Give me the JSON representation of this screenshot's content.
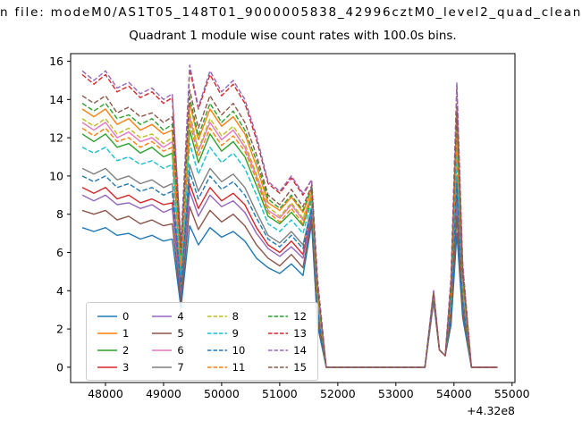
{
  "chart_data": {
    "type": "line",
    "suptitle": "n file: modeM0/AS1T05_148T01_9000005838_42996cztM0_level2_quad_clean",
    "title": "Quadrant 1 module wise count rates with 100.0s bins.",
    "xlabel": "",
    "ylabel": "",
    "x_offset_label": "+4.32e8",
    "xlim": [
      47400,
      55050
    ],
    "ylim": [
      -0.8,
      16.4
    ],
    "xticks": [
      48000,
      49000,
      50000,
      51000,
      52000,
      53000,
      54000,
      55000
    ],
    "yticks": [
      0,
      2,
      4,
      6,
      8,
      10,
      12,
      14,
      16
    ],
    "grid": false,
    "legend_position": "lower left",
    "legend_columns": 4,
    "x": [
      47600,
      47800,
      48000,
      48200,
      48400,
      48600,
      48800,
      49000,
      49150,
      49300,
      49450,
      49600,
      49800,
      50000,
      50200,
      50400,
      50600,
      50800,
      51000,
      51200,
      51400,
      51550,
      51650,
      51800,
      52000,
      52500,
      53000,
      53500,
      53650,
      53750,
      53850,
      53950,
      54050,
      54150,
      54300,
      54500,
      54750
    ],
    "series": [
      {
        "name": "0",
        "color": "#1f77b4",
        "dash": false,
        "values": [
          7.3,
          7.1,
          7.3,
          6.9,
          7.0,
          6.7,
          6.9,
          6.6,
          6.7,
          3.1,
          7.4,
          6.4,
          7.3,
          6.8,
          7.1,
          6.6,
          5.7,
          5.2,
          4.9,
          5.4,
          4.8,
          7.5,
          2.2,
          0,
          0,
          0,
          0,
          0,
          3.4,
          0.9,
          0.6,
          2.2,
          7.0,
          2.6,
          0,
          0,
          0
        ]
      },
      {
        "name": "1",
        "color": "#ff7f0e",
        "dash": false,
        "values": [
          13.5,
          13.1,
          13.5,
          12.7,
          13.0,
          12.4,
          12.7,
          12.2,
          12.4,
          5.7,
          13.8,
          11.9,
          13.5,
          12.6,
          13.1,
          12.2,
          10.5,
          8.6,
          8.2,
          8.9,
          8.1,
          9.3,
          4.1,
          0,
          0,
          0,
          0,
          0,
          3.9,
          0.9,
          0.6,
          4.1,
          13.0,
          4.7,
          0,
          0,
          0
        ]
      },
      {
        "name": "2",
        "color": "#2ca02c",
        "dash": false,
        "values": [
          12.2,
          11.8,
          12.2,
          11.5,
          11.7,
          11.2,
          11.5,
          11.0,
          11.2,
          5.1,
          12.4,
          10.7,
          12.2,
          11.3,
          11.8,
          11.0,
          9.5,
          7.9,
          7.5,
          8.1,
          7.4,
          8.9,
          3.7,
          0,
          0,
          0,
          0,
          0,
          3.8,
          0.9,
          0.6,
          3.7,
          11.7,
          4.3,
          0,
          0,
          0
        ]
      },
      {
        "name": "3",
        "color": "#d62728",
        "dash": false,
        "values": [
          9.4,
          9.1,
          9.4,
          8.8,
          9.0,
          8.6,
          8.8,
          8.5,
          8.6,
          3.9,
          9.6,
          8.3,
          9.4,
          8.7,
          9.1,
          8.5,
          7.3,
          6.4,
          6.0,
          6.6,
          5.9,
          8.1,
          2.8,
          0,
          0,
          0,
          0,
          0,
          3.6,
          0.9,
          0.6,
          2.8,
          9.0,
          3.3,
          0,
          0,
          0
        ]
      },
      {
        "name": "4",
        "color": "#9467bd",
        "dash": false,
        "values": [
          9.0,
          8.7,
          9.0,
          8.5,
          8.6,
          8.3,
          8.5,
          8.1,
          8.3,
          3.8,
          9.2,
          7.9,
          9.0,
          8.4,
          8.7,
          8.1,
          7.0,
          6.2,
          5.8,
          6.3,
          5.7,
          8.0,
          2.7,
          0,
          0,
          0,
          0,
          0,
          3.5,
          0.9,
          0.6,
          2.7,
          8.6,
          3.2,
          0,
          0,
          0
        ]
      },
      {
        "name": "5",
        "color": "#8c564b",
        "dash": false,
        "values": [
          8.2,
          8.0,
          8.2,
          7.7,
          7.9,
          7.5,
          7.7,
          7.4,
          7.5,
          3.4,
          8.4,
          7.2,
          8.2,
          7.6,
          8.0,
          7.4,
          6.4,
          5.7,
          5.3,
          5.9,
          5.2,
          7.8,
          2.5,
          0,
          0,
          0,
          0,
          0,
          3.5,
          0.9,
          0.6,
          2.5,
          7.9,
          2.9,
          0,
          0,
          0
        ]
      },
      {
        "name": "6",
        "color": "#e377c2",
        "dash": false,
        "values": [
          12.8,
          12.4,
          12.8,
          12.0,
          12.3,
          11.8,
          12.0,
          11.5,
          11.8,
          5.4,
          13.1,
          11.3,
          12.8,
          11.9,
          12.4,
          11.5,
          10.0,
          8.2,
          7.8,
          8.5,
          7.7,
          9.1,
          3.8,
          0,
          0,
          0,
          0,
          0,
          3.8,
          0.9,
          0.6,
          3.8,
          12.3,
          4.5,
          0,
          0,
          0
        ]
      },
      {
        "name": "7",
        "color": "#7f7f7f",
        "dash": false,
        "values": [
          10.4,
          10.1,
          10.4,
          9.8,
          10.0,
          9.6,
          9.8,
          9.4,
          9.6,
          4.4,
          10.6,
          9.2,
          10.4,
          9.7,
          10.1,
          9.4,
          8.1,
          6.9,
          6.5,
          7.1,
          6.4,
          8.4,
          3.1,
          0,
          0,
          0,
          0,
          0,
          3.6,
          0.9,
          0.6,
          3.1,
          10.0,
          3.6,
          0,
          0,
          0
        ]
      },
      {
        "name": "8",
        "color": "#bcbd22",
        "dash": true,
        "values": [
          13.0,
          12.6,
          13.0,
          12.2,
          12.5,
          12.0,
          12.2,
          11.7,
          12.0,
          5.5,
          13.3,
          11.4,
          13.0,
          12.1,
          12.6,
          11.7,
          10.1,
          8.4,
          7.9,
          8.6,
          7.8,
          9.1,
          3.9,
          0,
          0,
          0,
          0,
          0,
          3.8,
          0.9,
          0.6,
          3.9,
          12.5,
          4.6,
          0,
          0,
          0
        ]
      },
      {
        "name": "9",
        "color": "#17becf",
        "dash": true,
        "values": [
          11.5,
          11.2,
          11.5,
          10.8,
          11.0,
          10.6,
          10.8,
          10.4,
          10.6,
          4.8,
          11.7,
          10.1,
          11.5,
          10.7,
          11.2,
          10.4,
          9.0,
          7.5,
          7.1,
          7.7,
          7.0,
          8.7,
          3.5,
          0,
          0,
          0,
          0,
          0,
          3.7,
          0.9,
          0.6,
          3.5,
          11.0,
          4.0,
          0,
          0,
          0
        ]
      },
      {
        "name": "10",
        "color": "#1f77b4",
        "dash": true,
        "values": [
          10.0,
          9.7,
          10.0,
          9.4,
          9.6,
          9.2,
          9.4,
          9.0,
          9.2,
          4.2,
          10.2,
          8.8,
          10.0,
          9.3,
          9.7,
          9.0,
          7.8,
          6.7,
          6.3,
          6.9,
          6.2,
          8.3,
          3.0,
          0,
          0,
          0,
          0,
          0,
          3.6,
          0.9,
          0.6,
          3.0,
          9.6,
          3.5,
          0,
          0,
          0
        ]
      },
      {
        "name": "11",
        "color": "#ff7f0e",
        "dash": true,
        "values": [
          12.5,
          12.1,
          12.5,
          11.8,
          12.0,
          11.5,
          11.8,
          11.3,
          11.5,
          5.3,
          12.8,
          11.0,
          12.5,
          11.6,
          12.1,
          11.3,
          9.8,
          8.1,
          7.6,
          8.3,
          7.5,
          9.0,
          3.8,
          0,
          0,
          0,
          0,
          0,
          3.8,
          0.9,
          0.6,
          3.8,
          12.0,
          4.4,
          0,
          0,
          0
        ]
      },
      {
        "name": "12",
        "color": "#2ca02c",
        "dash": true,
        "values": [
          13.8,
          13.4,
          13.8,
          13.0,
          13.2,
          12.7,
          13.0,
          12.4,
          12.7,
          5.8,
          14.1,
          12.1,
          13.8,
          12.8,
          13.4,
          12.4,
          10.8,
          8.8,
          8.3,
          9.0,
          8.2,
          9.4,
          4.1,
          0,
          0,
          0,
          0,
          0,
          3.9,
          0.9,
          0.6,
          4.1,
          13.2,
          4.8,
          0,
          0,
          0
        ]
      },
      {
        "name": "13",
        "color": "#d62728",
        "dash": true,
        "values": [
          15.3,
          14.8,
          15.3,
          14.4,
          14.7,
          14.1,
          14.4,
          13.8,
          14.1,
          6.4,
          15.6,
          13.5,
          15.3,
          14.2,
          14.8,
          13.8,
          11.9,
          9.6,
          9.1,
          9.9,
          9.0,
          9.8,
          4.6,
          0,
          0,
          0,
          0,
          0,
          4.0,
          0.9,
          0.6,
          4.6,
          14.7,
          5.4,
          0,
          0,
          0
        ]
      },
      {
        "name": "14",
        "color": "#9467bd",
        "dash": true,
        "values": [
          15.5,
          15.0,
          15.5,
          14.6,
          14.9,
          14.3,
          14.6,
          14.0,
          14.3,
          6.5,
          15.8,
          13.6,
          15.5,
          14.4,
          15.0,
          14.0,
          12.1,
          9.7,
          9.2,
          10.0,
          9.1,
          9.8,
          4.7,
          0,
          0,
          0,
          0,
          0,
          4.0,
          0.9,
          0.6,
          4.7,
          14.9,
          5.4,
          0,
          0,
          0
        ]
      },
      {
        "name": "15",
        "color": "#8c564b",
        "dash": true,
        "values": [
          14.2,
          13.8,
          14.2,
          13.3,
          13.6,
          13.1,
          13.3,
          12.8,
          13.1,
          6.0,
          14.5,
          12.5,
          14.2,
          13.2,
          13.8,
          12.8,
          11.1,
          9.0,
          8.5,
          9.3,
          8.4,
          9.5,
          4.3,
          0,
          0,
          0,
          0,
          0,
          3.9,
          0.9,
          0.6,
          4.3,
          13.6,
          5.0,
          0,
          0,
          0
        ]
      }
    ]
  }
}
